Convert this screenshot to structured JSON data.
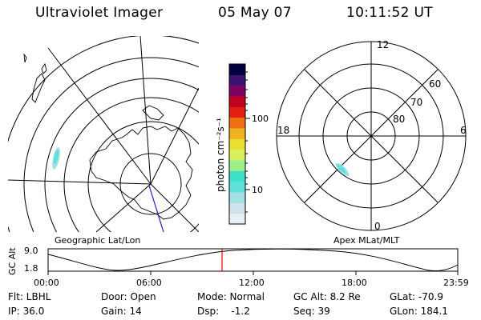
{
  "header": {
    "instrument": "Ultraviolet Imager",
    "date": "05 May 07",
    "time": "10:11:52 UT"
  },
  "colorbar": {
    "unit_label": "photon cm⁻²s⁻¹",
    "ticks": [
      "100",
      "10"
    ],
    "colors": [
      "#e8eef2",
      "#cfe3ea",
      "#a3dfe4",
      "#5fe0d8",
      "#3fe0c8",
      "#9cf08a",
      "#d8f060",
      "#e8e030",
      "#f0b020",
      "#f07010",
      "#e02010",
      "#c00020",
      "#800060",
      "#401070",
      "#000040"
    ]
  },
  "left_map": {
    "caption": "Geographic Lat/Lon"
  },
  "right_map": {
    "caption": "Apex MLat/MLT",
    "mlt_labels": {
      "top": "12",
      "left": "18",
      "right": "6",
      "bottom": "0"
    },
    "lat_labels": [
      "60",
      "70",
      "80"
    ]
  },
  "timeline": {
    "ylabel": "GC Alt",
    "y_top": "9.0",
    "y_bottom": "1.8",
    "ticks": [
      "00:00",
      "06:00",
      "12:00",
      "18:00",
      "23:59"
    ],
    "marker_color": "#e00000"
  },
  "info": {
    "flt": "Flt: LBHL",
    "ip": "IP: 36.0",
    "door": "Door: Open",
    "gain": "Gain: 14",
    "mode": "Mode: Normal",
    "dsp": "Dsp:    -1.2",
    "gc_alt": "GC Alt: 8.2 Re",
    "seq": "Seq: 39",
    "glat": "GLat: -70.9",
    "glon": "GLon: 184.1"
  }
}
